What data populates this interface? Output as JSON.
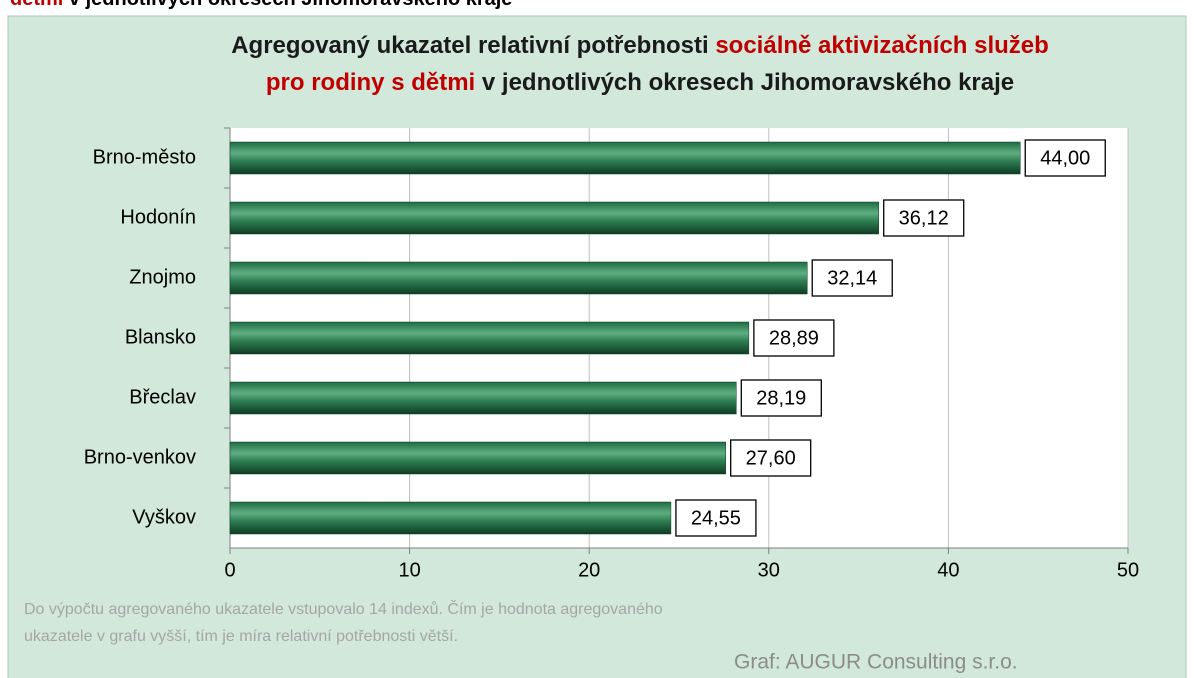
{
  "header_parts": [
    {
      "text": "dětmi",
      "color": "#c00000"
    },
    {
      "text": " v jednotlivých okresech Jihomoravského kraje",
      "color": "#000000"
    }
  ],
  "chart_data": {
    "type": "bar",
    "orientation": "horizontal",
    "title_lines": [
      [
        {
          "text": "Agregovaný ukazatel relativní potřebnosti ",
          "color": "#1a1a1a"
        },
        {
          "text": "sociálně aktivizačních služeb",
          "color": "#c00000"
        }
      ],
      [
        {
          "text": "pro rodiny s dětmi",
          "color": "#c00000"
        },
        {
          "text": " v jednotlivých okresech Jihomoravského kraje",
          "color": "#1a1a1a"
        }
      ]
    ],
    "categories": [
      "Brno-město",
      "Hodonín",
      "Znojmo",
      "Blansko",
      "Břeclav",
      "Brno-venkov",
      "Vyškov"
    ],
    "values": [
      44.0,
      36.12,
      32.14,
      28.89,
      28.19,
      27.6,
      24.55
    ],
    "value_labels": [
      "44,00",
      "36,12",
      "32,14",
      "28,89",
      "28,19",
      "27,60",
      "24,55"
    ],
    "color": "#2e7d52",
    "xlim": [
      0,
      50
    ],
    "xticks": [
      0,
      10,
      20,
      30,
      40,
      50
    ],
    "grid": true,
    "notes": [
      "Do výpočtu agregovaného ukazatele vstupovalo 14 indexů. Čím je hodnota agregovaného",
      "ukazatele v grafu vyšší, tím je míra relativní potřebnosti větší."
    ],
    "source": "Graf: AUGUR Consulting s.r.o."
  }
}
